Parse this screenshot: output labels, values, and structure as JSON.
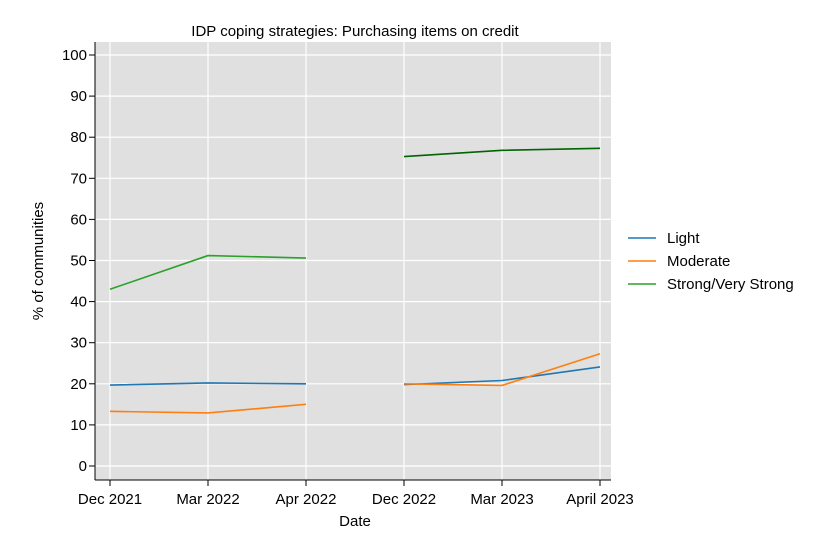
{
  "chart_data": {
    "type": "line",
    "title": "IDP coping strategies: Purchasing items on credit",
    "xlabel": "Date",
    "ylabel": "% of communities",
    "categories": [
      "Dec 2021",
      "Mar 2022",
      "Apr 2022",
      "Dec 2022",
      "Mar 2023",
      "April 2023"
    ],
    "ylim": [
      0,
      100
    ],
    "yticks": [
      0,
      10,
      20,
      30,
      40,
      50,
      60,
      70,
      80,
      90,
      100
    ],
    "grid": true,
    "legend_position": "right",
    "series": [
      {
        "name": "Light",
        "color": "#1f77b4",
        "values": [
          19.7,
          20.2,
          20.0,
          19.8,
          20.8,
          24.1
        ]
      },
      {
        "name": "Moderate",
        "color": "#ff7f0e",
        "values": [
          13.3,
          12.9,
          15.0,
          20.0,
          19.6,
          27.3
        ]
      },
      {
        "name": "Strong/Very Strong",
        "color": "#2ca02c",
        "values": [
          43.0,
          51.2,
          50.6,
          null,
          null,
          null
        ]
      }
    ],
    "extra_lines": [
      {
        "color": "#006400",
        "values": [
          null,
          null,
          null,
          75.3,
          76.8,
          77.3
        ]
      }
    ],
    "segments": [
      [
        0,
        2
      ],
      [
        3,
        5
      ]
    ]
  }
}
